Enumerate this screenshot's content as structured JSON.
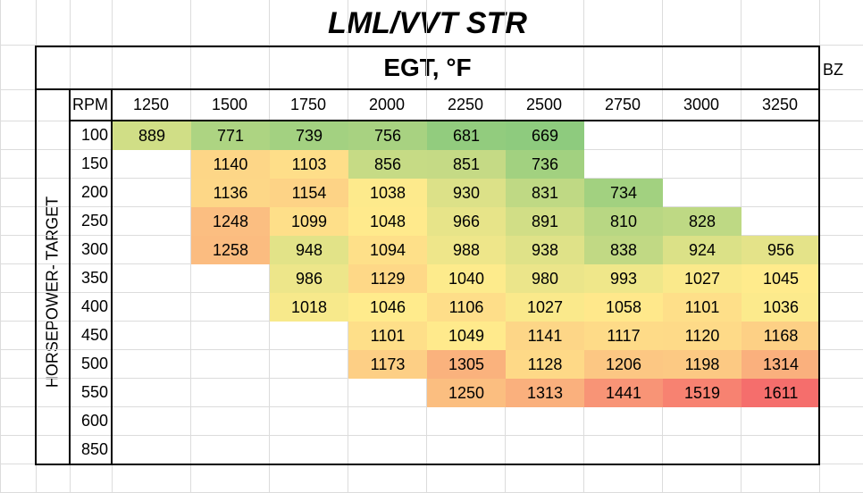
{
  "title": "LML/VVT  STR",
  "header": "EGT, °F",
  "note": "BZ",
  "row_axis_label": "HORSEPOWER- TARGET",
  "column_axis_label": "RPM",
  "columns": [
    1250,
    1500,
    1750,
    2000,
    2250,
    2500,
    2750,
    3000,
    3250
  ],
  "rows": [
    {
      "label": 100,
      "cells": [
        889,
        771,
        739,
        756,
        681,
        669,
        null,
        null,
        null
      ]
    },
    {
      "label": 150,
      "cells": [
        null,
        1140,
        1103,
        856,
        851,
        736,
        null,
        null,
        null
      ]
    },
    {
      "label": 200,
      "cells": [
        null,
        1136,
        1154,
        1038,
        930,
        831,
        734,
        null,
        null
      ]
    },
    {
      "label": 250,
      "cells": [
        null,
        1248,
        1099,
        1048,
        966,
        891,
        810,
        828,
        null
      ]
    },
    {
      "label": 300,
      "cells": [
        null,
        1258,
        948,
        1094,
        988,
        938,
        838,
        924,
        956
      ]
    },
    {
      "label": 350,
      "cells": [
        null,
        null,
        986,
        1129,
        1040,
        980,
        993,
        1027,
        1045
      ]
    },
    {
      "label": 400,
      "cells": [
        null,
        null,
        1018,
        1046,
        1106,
        1027,
        1058,
        1101,
        1036
      ]
    },
    {
      "label": 450,
      "cells": [
        null,
        null,
        null,
        1101,
        1049,
        1141,
        1117,
        1120,
        1168
      ]
    },
    {
      "label": 500,
      "cells": [
        null,
        null,
        null,
        1173,
        1305,
        1128,
        1206,
        1198,
        1314
      ]
    },
    {
      "label": 550,
      "cells": [
        null,
        null,
        null,
        null,
        1250,
        1313,
        1441,
        1519,
        1611
      ]
    },
    {
      "label": 600,
      "cells": [
        null,
        null,
        null,
        null,
        null,
        null,
        null,
        null,
        null
      ]
    },
    {
      "label": 850,
      "cells": [
        null,
        null,
        null,
        null,
        null,
        null,
        null,
        null,
        null
      ]
    }
  ]
}
